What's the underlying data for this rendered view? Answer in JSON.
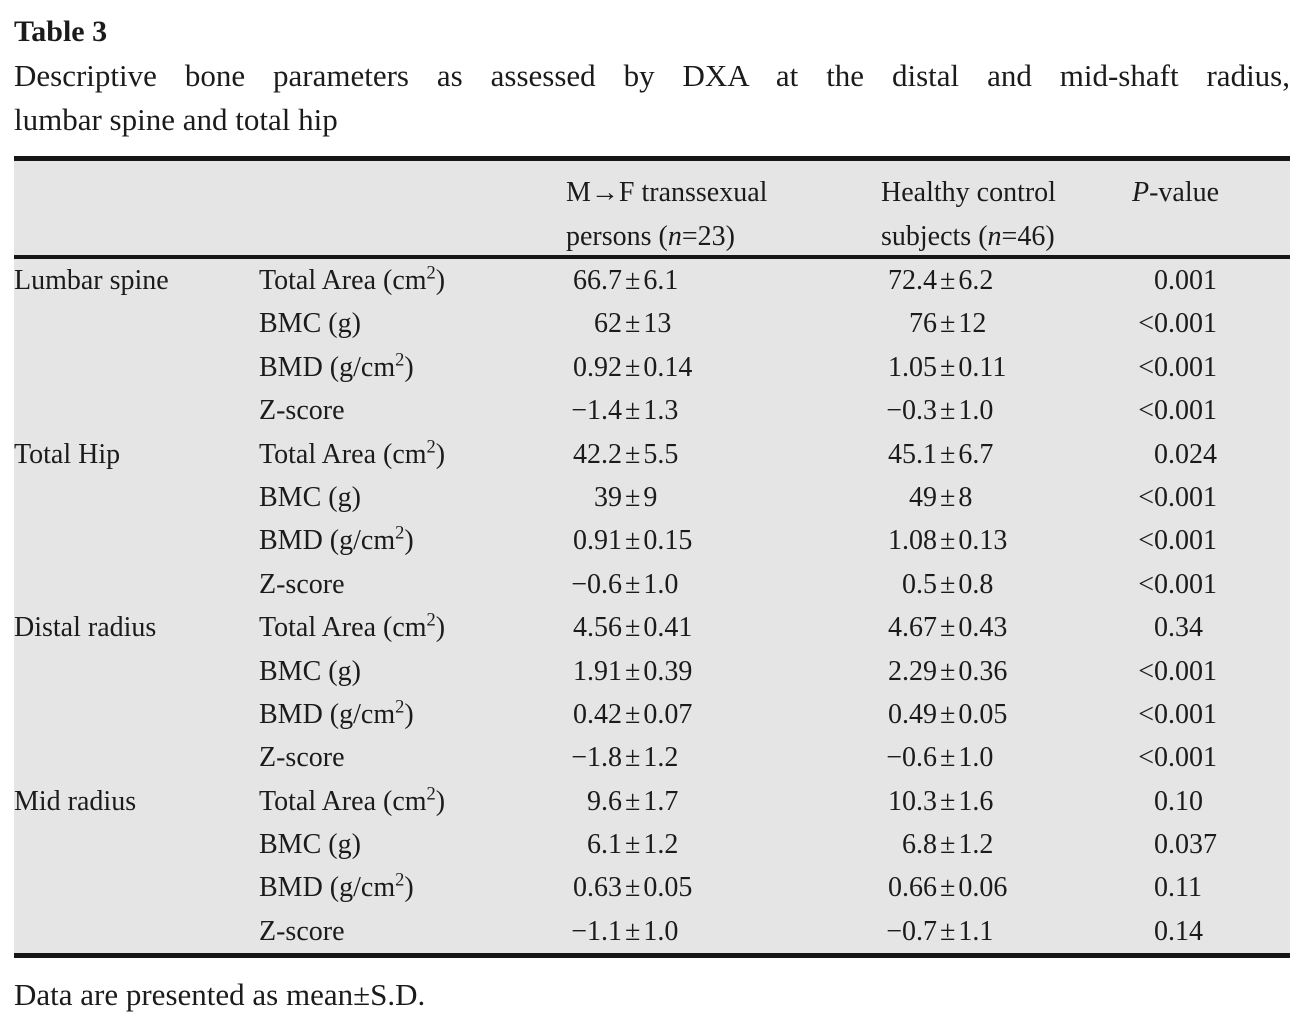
{
  "title": "Table 3",
  "caption_line1": "Descriptive bone parameters as assessed by DXA at the distal and mid-shaft radius,",
  "caption_line2": "lumbar spine and total hip",
  "footnote": "Data are presented as mean±S.D.",
  "colors": {
    "band": "#e5e5e6",
    "rule": "#161616",
    "text": "#1b1b1b"
  },
  "table": {
    "pm": "±",
    "header": {
      "col3": {
        "line1": "M→F transsexual",
        "line2": [
          {
            "t": "persons ("
          },
          {
            "t": "n",
            "italic": true
          },
          {
            "t": "=23)"
          }
        ]
      },
      "col4": {
        "line1": "Healthy control",
        "line2": [
          {
            "t": "subjects ("
          },
          {
            "t": "n",
            "italic": true
          },
          {
            "t": "=46)"
          }
        ]
      },
      "col5": [
        {
          "t": "P",
          "italic": true
        },
        {
          "t": "-value"
        }
      ]
    },
    "sections": [
      {
        "region": "Lumbar spine",
        "rows": [
          {
            "param": [
              {
                "t": "Total Area (cm"
              },
              {
                "t": "2",
                "sup": true
              },
              {
                "t": ")"
              }
            ],
            "mf": {
              "mean": "66.7",
              "sd": "6.1"
            },
            "ctrl": {
              "mean": "72.4",
              "sd": "6.2"
            },
            "p": {
              "lt": "",
              "num": "0.001"
            }
          },
          {
            "param": [
              {
                "t": "BMC (g)"
              }
            ],
            "mf": {
              "mean": "62",
              "sd": "13"
            },
            "ctrl": {
              "mean": "76",
              "sd": "12"
            },
            "p": {
              "lt": "<",
              "num": "0.001"
            }
          },
          {
            "param": [
              {
                "t": "BMD (g/cm"
              },
              {
                "t": "2",
                "sup": true
              },
              {
                "t": ")"
              }
            ],
            "mf": {
              "mean": "0.92",
              "sd": "0.14"
            },
            "ctrl": {
              "mean": "1.05",
              "sd": "0.11"
            },
            "p": {
              "lt": "<",
              "num": "0.001"
            }
          },
          {
            "param": [
              {
                "t": "Z-score"
              }
            ],
            "mf": {
              "mean": "−1.4",
              "sd": "1.3"
            },
            "ctrl": {
              "mean": "−0.3",
              "sd": "1.0"
            },
            "p": {
              "lt": "<",
              "num": "0.001"
            }
          }
        ]
      },
      {
        "region": "Total Hip",
        "rows": [
          {
            "param": [
              {
                "t": "Total Area (cm"
              },
              {
                "t": "2",
                "sup": true
              },
              {
                "t": ")"
              }
            ],
            "mf": {
              "mean": "42.2",
              "sd": "5.5"
            },
            "ctrl": {
              "mean": "45.1",
              "sd": "6.7"
            },
            "p": {
              "lt": "",
              "num": "0.024"
            }
          },
          {
            "param": [
              {
                "t": "BMC (g)"
              }
            ],
            "mf": {
              "mean": "39",
              "sd": "9"
            },
            "ctrl": {
              "mean": "49",
              "sd": "8"
            },
            "p": {
              "lt": "<",
              "num": "0.001"
            }
          },
          {
            "param": [
              {
                "t": "BMD (g/cm"
              },
              {
                "t": "2",
                "sup": true
              },
              {
                "t": ")"
              }
            ],
            "mf": {
              "mean": "0.91",
              "sd": "0.15"
            },
            "ctrl": {
              "mean": "1.08",
              "sd": "0.13"
            },
            "p": {
              "lt": "<",
              "num": "0.001"
            }
          },
          {
            "param": [
              {
                "t": "Z-score"
              }
            ],
            "mf": {
              "mean": "−0.6",
              "sd": "1.0"
            },
            "ctrl": {
              "mean": "0.5",
              "sd": "0.8"
            },
            "p": {
              "lt": "<",
              "num": "0.001"
            }
          }
        ]
      },
      {
        "region": "Distal radius",
        "rows": [
          {
            "param": [
              {
                "t": "Total Area (cm"
              },
              {
                "t": "2",
                "sup": true
              },
              {
                "t": ")"
              }
            ],
            "mf": {
              "mean": "4.56",
              "sd": "0.41"
            },
            "ctrl": {
              "mean": "4.67",
              "sd": "0.43"
            },
            "p": {
              "lt": "",
              "num": "0.34"
            }
          },
          {
            "param": [
              {
                "t": "BMC (g)"
              }
            ],
            "mf": {
              "mean": "1.91",
              "sd": "0.39"
            },
            "ctrl": {
              "mean": "2.29",
              "sd": "0.36"
            },
            "p": {
              "lt": "<",
              "num": "0.001"
            }
          },
          {
            "param": [
              {
                "t": "BMD (g/cm"
              },
              {
                "t": "2",
                "sup": true
              },
              {
                "t": ")"
              }
            ],
            "mf": {
              "mean": "0.42",
              "sd": "0.07"
            },
            "ctrl": {
              "mean": "0.49",
              "sd": "0.05"
            },
            "p": {
              "lt": "<",
              "num": "0.001"
            }
          },
          {
            "param": [
              {
                "t": "Z-score"
              }
            ],
            "mf": {
              "mean": "−1.8",
              "sd": "1.2"
            },
            "ctrl": {
              "mean": "−0.6",
              "sd": "1.0"
            },
            "p": {
              "lt": "<",
              "num": "0.001"
            }
          }
        ]
      },
      {
        "region": "Mid radius",
        "rows": [
          {
            "param": [
              {
                "t": "Total Area (cm"
              },
              {
                "t": "2",
                "sup": true
              },
              {
                "t": ")"
              }
            ],
            "mf": {
              "mean": "9.6",
              "sd": "1.7"
            },
            "ctrl": {
              "mean": "10.3",
              "sd": "1.6"
            },
            "p": {
              "lt": "",
              "num": "0.10"
            }
          },
          {
            "param": [
              {
                "t": "BMC (g)"
              }
            ],
            "mf": {
              "mean": "6.1",
              "sd": "1.2"
            },
            "ctrl": {
              "mean": "6.8",
              "sd": "1.2"
            },
            "p": {
              "lt": "",
              "num": "0.037"
            }
          },
          {
            "param": [
              {
                "t": "BMD (g/cm"
              },
              {
                "t": "2",
                "sup": true
              },
              {
                "t": ")"
              }
            ],
            "mf": {
              "mean": "0.63",
              "sd": "0.05"
            },
            "ctrl": {
              "mean": "0.66",
              "sd": "0.06"
            },
            "p": {
              "lt": "",
              "num": "0.11"
            }
          },
          {
            "param": [
              {
                "t": "Z-score"
              }
            ],
            "mf": {
              "mean": "−1.1",
              "sd": "1.0"
            },
            "ctrl": {
              "mean": "−0.7",
              "sd": "1.1"
            },
            "p": {
              "lt": "",
              "num": "0.14"
            }
          }
        ]
      }
    ]
  }
}
